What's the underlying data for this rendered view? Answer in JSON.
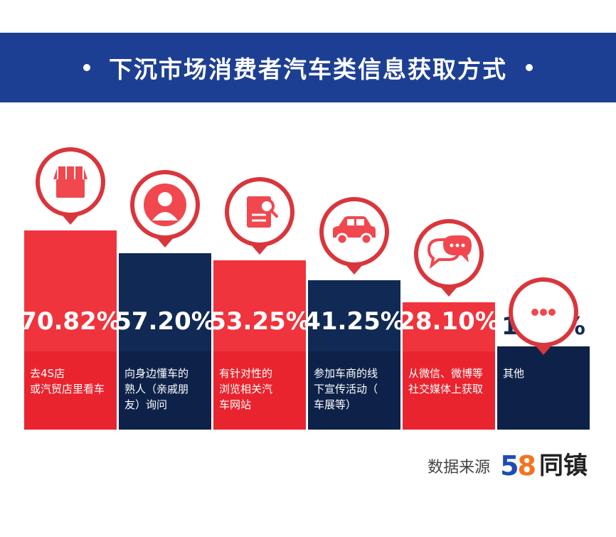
{
  "banner": {
    "title": "下沉市场消费者汽车类信息获取方式"
  },
  "colors": {
    "red": "#f0343d",
    "navy": "#112a55",
    "banner": "#1d3f93",
    "iconRed": "#f0484e"
  },
  "chart_data": {
    "type": "bar",
    "title": "下沉市场消费者汽车类信息获取方式",
    "categories": [
      [
        "去4S店",
        "或汽贸店里看车"
      ],
      [
        "向身边懂车的",
        "熟人（亲戚朋",
        "友）询问"
      ],
      [
        "有针对性的",
        "浏览相关汽",
        "车网站"
      ],
      [
        "参加车商的线",
        "下宣传活动（",
        "车展等）"
      ],
      [
        "从微信、微博等",
        "社交媒体上获取"
      ],
      [
        "其他"
      ]
    ],
    "values": [
      70.82,
      57.2,
      53.25,
      41.25,
      28.1,
      1.93
    ],
    "labels": [
      "70.82%",
      "57.20%",
      "53.25%",
      "41.25%",
      "28.10%",
      "1.93%"
    ],
    "colors": [
      "red",
      "navy",
      "red",
      "navy",
      "red",
      "navy"
    ],
    "icons": [
      "store-icon",
      "person-icon",
      "search-document-icon",
      "car-icon",
      "chat-icon",
      "more-icon"
    ],
    "ylim": [
      0,
      100
    ]
  },
  "source": {
    "label": "数据来源",
    "logo_digits_5": "5",
    "logo_digits_8": "8",
    "logo_brand": "同镇"
  }
}
